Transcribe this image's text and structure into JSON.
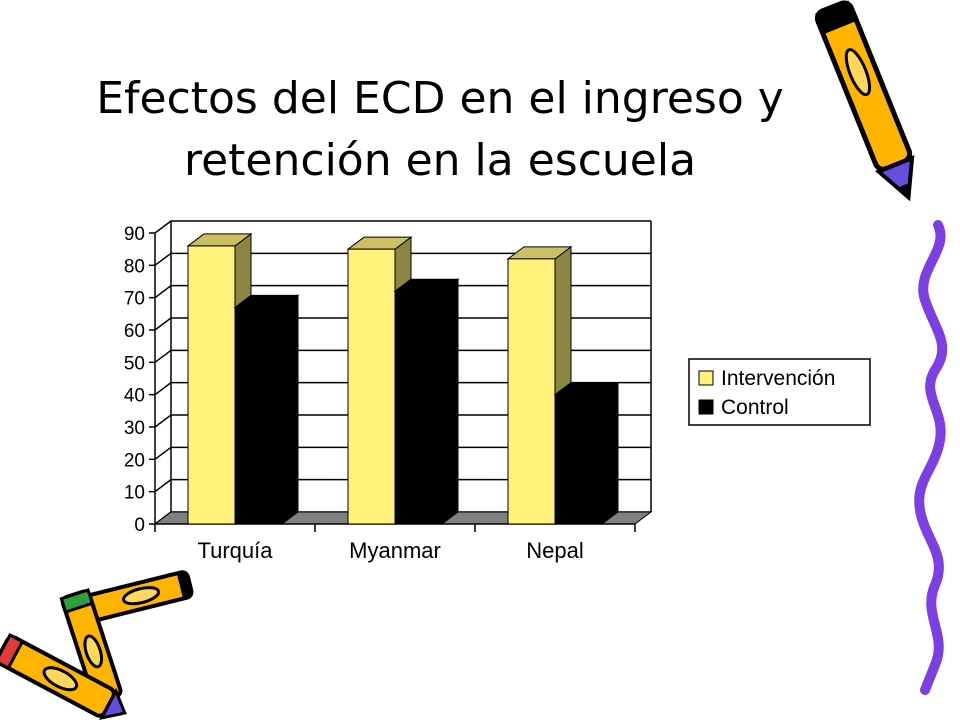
{
  "slide": {
    "title_line1": "Efectos del ECD en el ingreso y",
    "title_line2": "retención en la escuela"
  },
  "chart_data": {
    "type": "bar",
    "title": "",
    "xlabel": "",
    "ylabel": "",
    "categories": [
      "Turquía",
      "Myanmar",
      "Nepal"
    ],
    "series": [
      {
        "name": "Intervención",
        "values": [
          86,
          85,
          82
        ],
        "color": "#FFF17A"
      },
      {
        "name": "Control",
        "values": [
          67,
          72,
          40
        ],
        "color": "#000000"
      }
    ],
    "ylim": [
      0,
      90
    ],
    "yticks": [
      0,
      10,
      20,
      30,
      40,
      50,
      60,
      70,
      80,
      90
    ],
    "grid": true,
    "legend_position": "right",
    "three_d": true
  },
  "decor": {
    "pencil_icon_color": "#FFB400",
    "pencil_accent_color": "#6A4BE0",
    "squiggle_color": "#7B3FE4"
  }
}
